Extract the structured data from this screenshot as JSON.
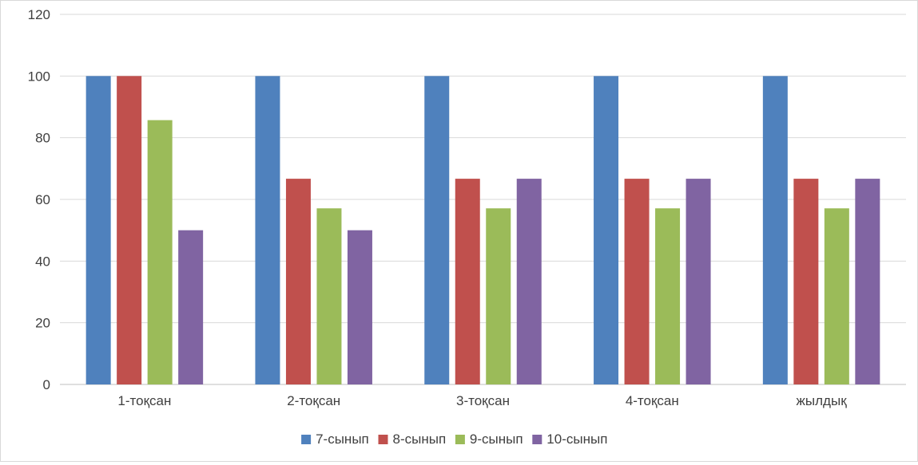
{
  "chart_data": {
    "type": "bar",
    "categories": [
      "1-тоқсан",
      "2-тоқсан",
      "3-тоқсан",
      "4-тоқсан",
      "жылдық"
    ],
    "series": [
      {
        "name": "7-сынып",
        "color": "#4f81bd",
        "values": [
          100,
          100,
          100,
          100,
          100
        ]
      },
      {
        "name": "8-сынып",
        "color": "#c0504d",
        "values": [
          100,
          66.7,
          66.7,
          66.7,
          66.7
        ]
      },
      {
        "name": "9-сынып",
        "color": "#9bbb59",
        "values": [
          85.7,
          57.1,
          57.1,
          57.1,
          57.1
        ]
      },
      {
        "name": "10-сынып",
        "color": "#8064a2",
        "values": [
          50,
          50,
          66.7,
          66.7,
          66.7
        ]
      }
    ],
    "yticks": [
      "0",
      "20",
      "40",
      "60",
      "80",
      "100",
      "120"
    ],
    "ylim": [
      0,
      120
    ],
    "grid": true,
    "legend_position": "bottom",
    "title": "",
    "xlabel": "",
    "ylabel": ""
  }
}
